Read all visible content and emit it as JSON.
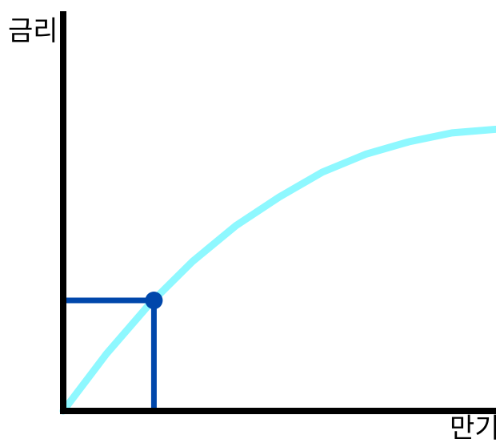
{
  "chart_data": {
    "type": "line",
    "xlabel": "만기",
    "ylabel": "금리",
    "ticks": "none",
    "grid": false,
    "series": [
      {
        "color": "#8ef8ff",
        "x": [
          0,
          10,
          20,
          30,
          40,
          50,
          60,
          70,
          80,
          90,
          100
        ],
        "y": [
          0,
          16,
          30,
          42,
          52,
          60,
          67,
          72,
          75.5,
          78,
          79
        ]
      }
    ],
    "highlight_point": {
      "x": 21,
      "y": 31,
      "color": "#0047ab"
    }
  }
}
